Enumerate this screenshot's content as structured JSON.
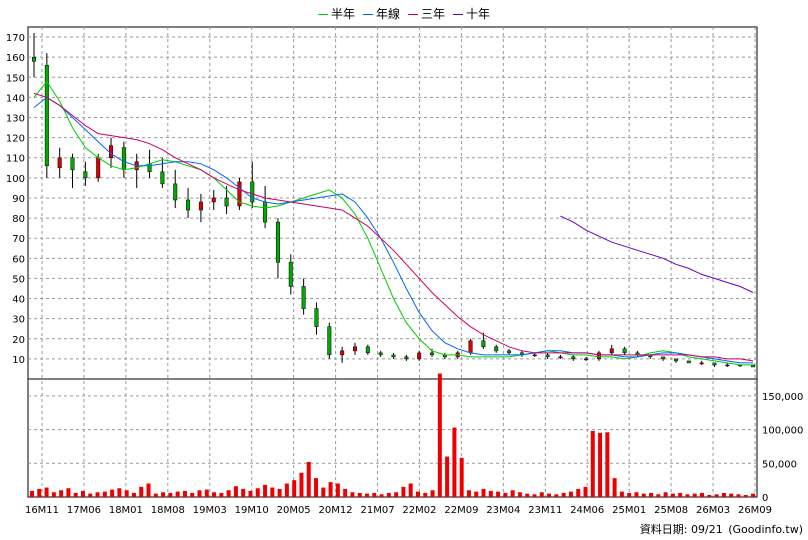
{
  "legend": [
    {
      "label": "半年",
      "color": "#00cc00"
    },
    {
      "label": "年線",
      "color": "#0066ff"
    },
    {
      "label": "三年",
      "color": "#cc0066"
    },
    {
      "label": "十年",
      "color": "#6600cc"
    }
  ],
  "footer": {
    "date_label": "資料日期: 09/21",
    "source": "(Goodinfo.tw)"
  },
  "chart_data": [
    {
      "type": "candlestick",
      "title": "",
      "ylim": [
        0,
        175
      ],
      "y_ticks": [
        10,
        20,
        30,
        40,
        50,
        60,
        70,
        80,
        90,
        100,
        110,
        120,
        130,
        140,
        150,
        160,
        170
      ],
      "x_ticks": [
        "16M11",
        "17M06",
        "18M01",
        "18M08",
        "19M03",
        "19M10",
        "20M05",
        "20M12",
        "21M07",
        "22M02",
        "22M09",
        "23M04",
        "23M11",
        "24M06",
        "25M01",
        "25M08",
        "26M03",
        "26M09"
      ],
      "grid": true,
      "series": [
        {
          "name": "半年",
          "color": "#00cc00",
          "values": [
            140,
            148,
            138,
            125,
            115,
            110,
            106,
            104,
            105,
            107,
            109,
            108,
            106,
            104,
            100,
            94,
            88,
            86,
            85,
            86,
            88,
            90,
            92,
            94,
            90,
            82,
            70,
            55,
            40,
            28,
            20,
            14,
            12,
            12,
            11,
            11,
            11,
            11,
            12,
            13,
            14,
            13,
            12,
            12,
            11,
            11,
            10,
            11,
            13,
            14,
            13,
            11,
            10,
            9,
            8,
            7,
            7
          ]
        },
        {
          "name": "年線",
          "color": "#0066ff",
          "values": [
            135,
            140,
            136,
            130,
            124,
            118,
            112,
            108,
            106,
            106,
            107,
            108,
            108,
            107,
            104,
            100,
            95,
            90,
            88,
            87,
            88,
            89,
            90,
            91,
            92,
            88,
            80,
            70,
            58,
            45,
            33,
            24,
            18,
            15,
            13,
            12,
            12,
            12,
            12,
            13,
            14,
            14,
            13,
            13,
            12,
            12,
            11,
            11,
            12,
            13,
            13,
            12,
            11,
            10,
            9,
            8,
            8
          ]
        },
        {
          "name": "三年",
          "color": "#cc0066",
          "values": [
            142,
            140,
            136,
            131,
            126,
            122,
            121,
            120,
            119,
            117,
            114,
            110,
            107,
            104,
            100,
            97,
            94,
            92,
            90,
            89,
            88,
            87,
            86,
            85,
            84,
            80,
            76,
            70,
            64,
            57,
            50,
            43,
            37,
            31,
            26,
            22,
            19,
            16,
            14,
            13,
            13,
            13,
            13,
            13,
            12,
            12,
            12,
            12,
            12,
            12,
            12,
            12,
            11,
            11,
            10,
            10,
            9
          ]
        },
        {
          "name": "十年",
          "color": "#6600cc",
          "values": [
            null,
            null,
            null,
            null,
            null,
            null,
            null,
            null,
            null,
            null,
            null,
            null,
            null,
            null,
            null,
            null,
            null,
            null,
            null,
            null,
            null,
            null,
            null,
            null,
            null,
            null,
            null,
            null,
            null,
            null,
            null,
            null,
            null,
            null,
            null,
            null,
            null,
            null,
            null,
            null,
            null,
            81,
            78,
            74,
            71,
            68,
            66,
            64,
            62,
            60,
            57,
            55,
            52,
            50,
            48,
            46,
            43
          ]
        }
      ],
      "candles": [
        [
          160,
          172,
          150,
          158
        ],
        [
          156,
          162,
          100,
          106
        ],
        [
          105,
          115,
          100,
          110
        ],
        [
          110,
          112,
          95,
          104
        ],
        [
          103,
          108,
          96,
          100
        ],
        [
          100,
          112,
          98,
          110
        ],
        [
          110,
          120,
          105,
          116
        ],
        [
          115,
          118,
          100,
          104
        ],
        [
          104,
          112,
          95,
          108
        ],
        [
          107,
          114,
          100,
          103
        ],
        [
          103,
          110,
          95,
          97
        ],
        [
          97,
          104,
          85,
          89
        ],
        [
          89,
          95,
          80,
          84
        ],
        [
          84,
          92,
          78,
          88
        ],
        [
          88,
          94,
          84,
          90
        ],
        [
          90,
          96,
          82,
          86
        ],
        [
          86,
          100,
          84,
          98
        ],
        [
          98,
          108,
          85,
          88
        ],
        [
          88,
          96,
          75,
          78
        ],
        [
          78,
          80,
          50,
          58
        ],
        [
          58,
          62,
          42,
          46
        ],
        [
          46,
          50,
          32,
          35
        ],
        [
          35,
          38,
          22,
          26
        ],
        [
          26,
          28,
          10,
          12
        ],
        [
          12,
          16,
          8,
          14
        ],
        [
          14,
          18,
          12,
          16
        ],
        [
          16,
          17,
          12,
          13
        ],
        [
          13,
          14,
          11,
          12
        ],
        [
          12,
          13,
          10,
          11
        ],
        [
          11,
          12,
          9,
          10
        ],
        [
          10,
          14,
          9,
          13
        ],
        [
          13,
          15,
          11,
          12
        ],
        [
          12,
          13,
          10,
          11
        ],
        [
          11,
          14,
          10,
          13
        ],
        [
          13,
          20,
          12,
          19
        ],
        [
          19,
          23,
          15,
          16
        ],
        [
          16,
          17,
          13,
          14
        ],
        [
          14,
          15,
          12,
          13
        ],
        [
          13,
          14,
          11,
          12
        ],
        [
          12,
          13,
          11,
          12
        ],
        [
          12,
          13,
          10,
          11
        ],
        [
          11,
          12,
          10,
          11
        ],
        [
          11,
          12,
          9,
          10
        ],
        [
          10,
          11,
          9,
          10
        ],
        [
          10,
          14,
          9,
          13
        ],
        [
          13,
          17,
          12,
          15
        ],
        [
          15,
          16,
          12,
          13
        ],
        [
          13,
          14,
          11,
          12
        ],
        [
          12,
          12,
          10,
          11
        ],
        [
          11,
          11,
          9,
          10
        ],
        [
          10,
          10,
          8,
          9
        ],
        [
          9,
          9,
          8,
          8
        ],
        [
          8,
          9,
          7,
          8
        ],
        [
          8,
          8,
          6,
          7
        ],
        [
          7,
          8,
          6,
          7
        ],
        [
          7,
          7,
          6,
          7
        ],
        [
          7,
          7,
          6,
          6
        ]
      ]
    },
    {
      "type": "bar",
      "title": "",
      "ylim": [
        0,
        175000
      ],
      "y_ticks": [
        0,
        50000,
        100000,
        150000
      ],
      "y_tick_labels": [
        "0",
        "50,000",
        "100,000",
        "150,000"
      ],
      "grid": true,
      "color": "#ee0000",
      "values": [
        9000,
        12000,
        14000,
        7000,
        10000,
        13000,
        6000,
        9000,
        5000,
        7000,
        8000,
        11000,
        13000,
        10000,
        6000,
        15000,
        20000,
        5000,
        7000,
        6000,
        8000,
        9000,
        6000,
        10000,
        11000,
        7000,
        6000,
        10000,
        16000,
        12000,
        9000,
        13000,
        18000,
        14000,
        12000,
        20000,
        25000,
        36000,
        52000,
        28000,
        14000,
        22000,
        20000,
        12000,
        7000,
        6000,
        5000,
        6000,
        4000,
        6000,
        7000,
        15000,
        20000,
        8000,
        6000,
        10000,
        183000,
        60000,
        103000,
        58000,
        10000,
        8000,
        12000,
        9000,
        8000,
        6000,
        10000,
        7000,
        5000,
        4000,
        7000,
        5000,
        4000,
        6000,
        8000,
        12000,
        15000,
        98000,
        95000,
        96000,
        28000,
        8000,
        6000,
        7000,
        5000,
        6000,
        4000,
        7000,
        5000,
        6000,
        4000,
        5000,
        6000,
        3000,
        4000,
        6000,
        5000,
        4000,
        3000,
        5000
      ]
    }
  ]
}
